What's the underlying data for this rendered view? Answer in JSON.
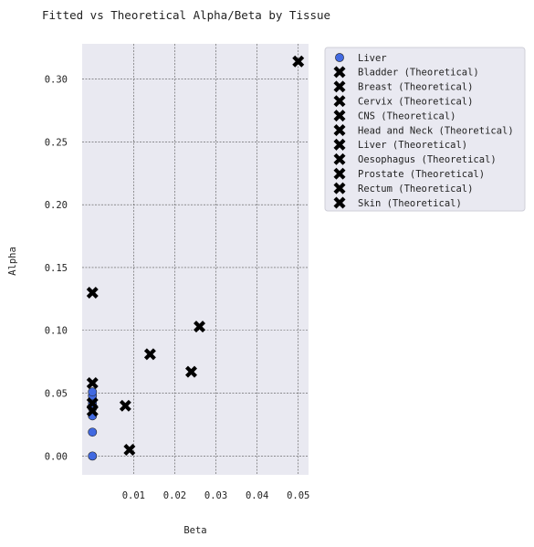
{
  "chart_data": {
    "type": "scatter",
    "title": "Fitted vs Theoretical Alpha/Beta by Tissue",
    "xlabel": "Beta",
    "ylabel": "Alpha",
    "xlim": [
      -0.0025,
      0.0525
    ],
    "ylim": [
      -0.015,
      0.328
    ],
    "xticks": [
      0.01,
      0.02,
      0.03,
      0.04,
      0.05
    ],
    "xtick_labels": [
      "0.01",
      "0.02",
      "0.03",
      "0.04",
      "0.05"
    ],
    "yticks": [
      0.0,
      0.05,
      0.1,
      0.15,
      0.2,
      0.25,
      0.3
    ],
    "ytick_labels": [
      "0.00",
      "0.05",
      "0.10",
      "0.15",
      "0.20",
      "0.25",
      "0.30"
    ],
    "grid": true,
    "legend_position": "outside right, top",
    "colors": {
      "plot_bg": "#e9e9f1",
      "fitted": "#4169e1",
      "theoretical": "#000000",
      "grid": "#555555"
    },
    "series": [
      {
        "name": "Liver",
        "marker": "circle",
        "color": "#4169e1",
        "x": [
          0.0,
          0.0,
          0.0,
          0.0,
          0.0,
          0.0,
          0.0,
          0.0
        ],
        "y": [
          0.0,
          0.019,
          0.032,
          0.038,
          0.042,
          0.045,
          0.048,
          0.051
        ]
      },
      {
        "name": "Bladder (Theoretical)",
        "marker": "x",
        "x": [
          0.0
        ],
        "y": [
          0.13
        ]
      },
      {
        "name": "Breast (Theoretical)",
        "marker": "x",
        "x": [
          0.0
        ],
        "y": [
          0.058
        ]
      },
      {
        "name": "Cervix (Theoretical)",
        "marker": "x",
        "x": [
          0.014
        ],
        "y": [
          0.081
        ]
      },
      {
        "name": "CNS (Theoretical)",
        "marker": "x",
        "x": [
          0.0
        ],
        "y": [
          0.042
        ]
      },
      {
        "name": "Head and Neck (Theoretical)",
        "marker": "x",
        "x": [
          0.026
        ],
        "y": [
          0.103
        ]
      },
      {
        "name": "Liver (Theoretical)",
        "marker": "x",
        "x": [
          0.009
        ],
        "y": [
          0.005
        ]
      },
      {
        "name": "Oesophagus (Theoretical)",
        "marker": "x",
        "x": [
          0.024
        ],
        "y": [
          0.067
        ]
      },
      {
        "name": "Prostate (Theoretical)",
        "marker": "x",
        "x": [
          0.008
        ],
        "y": [
          0.04
        ]
      },
      {
        "name": "Rectum (Theoretical)",
        "marker": "x",
        "x": [
          0.0
        ],
        "y": [
          0.036
        ]
      },
      {
        "name": "Skin (Theoretical)",
        "marker": "x",
        "x": [
          0.05
        ],
        "y": [
          0.314
        ]
      }
    ]
  }
}
